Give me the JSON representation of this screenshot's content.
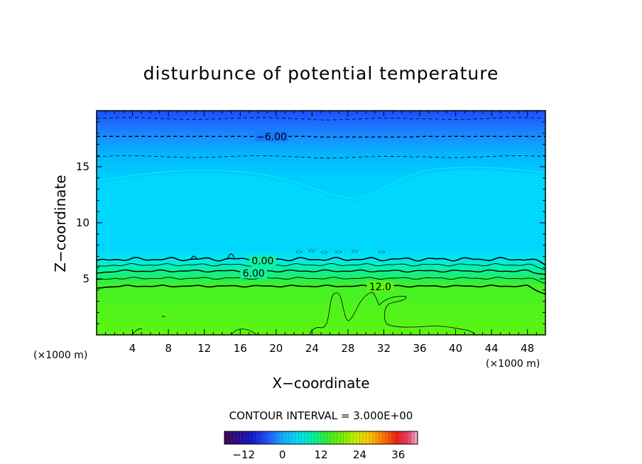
{
  "chart_data": {
    "type": "contour",
    "title": "disturbunce of potential temperature",
    "xlabel": "X−coordinate",
    "ylabel": "Z−coordinate",
    "x_unit_left": "(×1000 m)",
    "x_unit_right": "(×1000 m)",
    "xlim": [
      0,
      50
    ],
    "ylim": [
      0,
      20
    ],
    "x_ticks": [
      4,
      8,
      12,
      16,
      20,
      24,
      28,
      32,
      36,
      40,
      44,
      48
    ],
    "y_ticks": [
      5,
      10,
      15
    ],
    "contour_interval_text": "CONTOUR INTERVAL = 3.000E+00",
    "contour_labels": [
      {
        "text": "−6.00",
        "x": 19.5,
        "z": 17.7
      },
      {
        "text": "0.00",
        "x": 18.5,
        "z": 6.6
      },
      {
        "text": "6.00",
        "x": 17.5,
        "z": 5.5
      },
      {
        "text": "12.0",
        "x": 31.6,
        "z": 4.3
      }
    ],
    "colorbar": {
      "min": -18,
      "max": 42,
      "tick_labels": [
        "−12",
        "0",
        "12",
        "24",
        "36"
      ],
      "tick_values": [
        -12,
        0,
        12,
        24,
        36
      ]
    },
    "colors": {
      "top_band": "#1a5aff",
      "upper_mid": "#00c8ff",
      "mid": "#00e0ff",
      "lower": "#66ff00"
    }
  }
}
